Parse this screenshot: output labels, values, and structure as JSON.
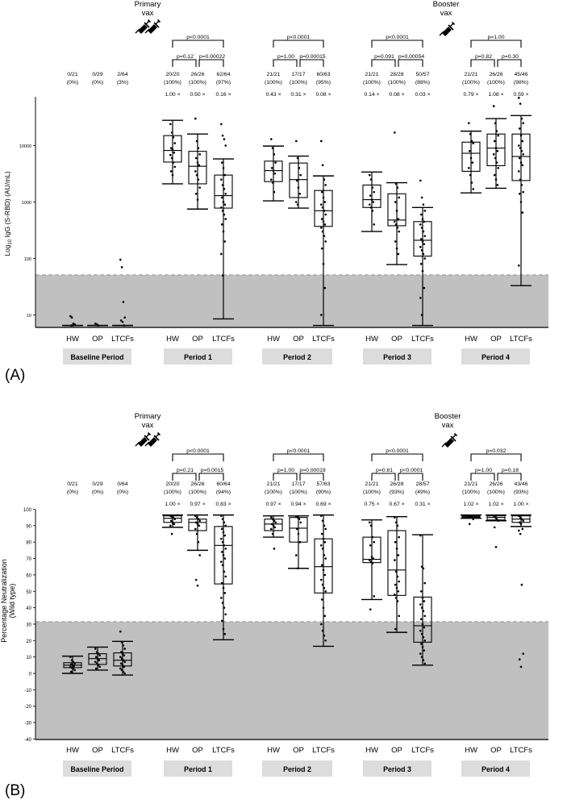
{
  "figure": {
    "panel_labels": [
      "(A)",
      "(B)"
    ],
    "groups": [
      "HW",
      "OP",
      "LTCFs"
    ],
    "periods": [
      "Baseline Period",
      "Period 1",
      "Period 2",
      "Period 3",
      "Period 4"
    ],
    "annotations": {
      "primary_vax": [
        "Primary",
        "vax"
      ],
      "booster_vax": [
        "Booster",
        "vax"
      ]
    },
    "colors": {
      "shade": "#c0c0c0",
      "dashed_line": "#a8a8a8",
      "period_box": "#dcdcdc",
      "ink": "#000000"
    }
  },
  "chart_data": [
    {
      "panel": "A",
      "type": "box",
      "ylabel": "Log10 IgG (S-RBD) (AU/mL)",
      "yscale": "log",
      "yticks": [
        10,
        100,
        1000,
        10000
      ],
      "ylim": [
        6,
        72000
      ],
      "threshold": 50,
      "categories": [
        "Baseline Period",
        "Period 1",
        "Period 2",
        "Period 3",
        "Period 4"
      ],
      "groups": [
        "HW",
        "OP",
        "LTCFs"
      ],
      "positives": [
        [
          "0/21",
          "0/29",
          "2/64"
        ],
        [
          "20/20",
          "26/26",
          "62/64"
        ],
        [
          "21/21",
          "17/17",
          "60/63"
        ],
        [
          "21/21",
          "28/28",
          "50/57"
        ],
        [
          "21/21",
          "26/26",
          "45/46"
        ]
      ],
      "percent": [
        [
          "(0%)",
          "(0%)",
          "(3%)"
        ],
        [
          "(100%)",
          "(100%)",
          "(97%)"
        ],
        [
          "(100%)",
          "(100%)",
          "(95%)"
        ],
        [
          "(100%)",
          "(100%)",
          "(88%)"
        ],
        [
          "(100%)",
          "(100%)",
          "(98%)"
        ]
      ],
      "fold": [
        [
          "",
          "",
          ""
        ],
        [
          "1.00 ×",
          "0.50 ×",
          "0.16 ×"
        ],
        [
          "0.43 ×",
          "0.31 ×",
          "0.08 ×"
        ],
        [
          "0.14 ×",
          "0.08 ×",
          "0.03 ×"
        ],
        [
          "0.79 ×",
          "1.08 ×",
          "0.59 ×"
        ]
      ],
      "pvalues": [
        null,
        {
          "overall": "p<0.0001",
          "hw_op": "p=0.12",
          "op_ltcf": "p=0.00022"
        },
        {
          "overall": "p<0.0001",
          "hw_op": "p=1.00",
          "op_ltcf": "p=0.00015"
        },
        {
          "overall": "p<0.0001",
          "hw_op": "p=0.091",
          "op_ltcf": "p=0.00054"
        },
        {
          "overall": "p=1.00",
          "hw_op": "p=0.82",
          "op_ltcf": "p=0.30"
        }
      ],
      "boxes": [
        [
          {
            "min": 6.5,
            "q1": 6.5,
            "median": 6.5,
            "q3": 6.5,
            "max": 6.5,
            "points": [
              9.5,
              9,
              7,
              6.8,
              6.5,
              6.5
            ]
          },
          {
            "min": 6.5,
            "q1": 6.5,
            "median": 6.5,
            "q3": 6.5,
            "max": 6.5,
            "points": [
              7,
              6.8,
              6.5
            ]
          },
          {
            "min": 6.5,
            "q1": 6.5,
            "median": 6.5,
            "q3": 6.5,
            "max": 6.5,
            "points": [
              95,
              70,
              17,
              9,
              8,
              7.5,
              6.5
            ]
          }
        ],
        [
          {
            "min": 2100,
            "q1": 5100,
            "median": 8200,
            "q3": 15000,
            "max": 28000,
            "points": [
              24000,
              17000,
              14000,
              11000,
              9000,
              8500,
              7500,
              6800,
              6000,
              5000,
              4200,
              3500,
              3000
            ]
          },
          {
            "min": 750,
            "q1": 2100,
            "median": 4300,
            "q3": 7900,
            "max": 16000,
            "points": [
              30000,
              12000,
              9000,
              7000,
              6000,
              5000,
              4500,
              3500,
              3000,
              2500,
              1800,
              1400,
              1100
            ]
          },
          {
            "min": 8.5,
            "q1": 780,
            "median": 1300,
            "q3": 3000,
            "max": 5800,
            "points": [
              24000,
              15000,
              13000,
              10000,
              5000,
              4000,
              3000,
              2500,
              2000,
              1700,
              1400,
              1200,
              1000,
              900,
              800,
              700,
              600,
              500,
              400,
              300,
              200,
              120,
              50
            ]
          }
        ],
        [
          {
            "min": 1050,
            "q1": 2300,
            "median": 3600,
            "q3": 5300,
            "max": 9800,
            "points": [
              13000,
              9000,
              7000,
              5000,
              4000,
              3600,
              3200,
              2500,
              2200,
              1500
            ]
          },
          {
            "min": 780,
            "q1": 1200,
            "median": 2500,
            "q3": 4900,
            "max": 6500,
            "points": [
              12000,
              6000,
              4000,
              3000,
              2400,
              1800,
              1400,
              1000,
              900
            ]
          },
          {
            "min": 6.5,
            "q1": 370,
            "median": 700,
            "q3": 1600,
            "max": 2900,
            "points": [
              12000,
              4500,
              2500,
              2000,
              1500,
              1200,
              1000,
              900,
              800,
              700,
              600,
              500,
              450,
              400,
              350,
              300,
              250,
              200,
              150,
              80,
              30,
              10
            ]
          }
        ],
        [
          {
            "min": 300,
            "q1": 800,
            "median": 1100,
            "q3": 2000,
            "max": 3400,
            "points": [
              3000,
              2500,
              1800,
              1500,
              1300,
              1100,
              1000,
              900,
              800,
              700,
              400
            ]
          },
          {
            "min": 78,
            "q1": 380,
            "median": 480,
            "q3": 1400,
            "max": 2200,
            "points": [
              17000,
              2100,
              1800,
              1200,
              1000,
              700,
              500,
              450,
              400,
              350,
              300,
              200,
              150,
              120
            ]
          },
          {
            "min": 6.5,
            "q1": 110,
            "median": 210,
            "q3": 450,
            "max": 800,
            "points": [
              2400,
              1200,
              900,
              700,
              600,
              500,
              450,
              400,
              350,
              300,
              250,
              220,
              200,
              180,
              160,
              140,
              120,
              100,
              80,
              60,
              30,
              20,
              10
            ]
          }
        ],
        [
          {
            "min": 1450,
            "q1": 3500,
            "median": 7300,
            "q3": 11500,
            "max": 18000,
            "points": [
              25000,
              16000,
              12000,
              11000,
              8000,
              6000,
              5000,
              4000,
              3000,
              2200,
              1700
            ]
          },
          {
            "min": 1750,
            "q1": 4400,
            "median": 9000,
            "q3": 16000,
            "max": 30000,
            "points": [
              50000,
              25000,
              18000,
              15000,
              12000,
              9000,
              8000,
              7000,
              6000,
              5000,
              4000,
              3000,
              2500,
              2000
            ]
          },
          {
            "min": 33,
            "q1": 2400,
            "median": 6400,
            "q3": 16000,
            "max": 34000,
            "points": [
              70000,
              55000,
              30000,
              25000,
              20000,
              15000,
              12000,
              10000,
              9000,
              8000,
              7000,
              6000,
              5000,
              4500,
              3500,
              2500,
              2000,
              1500,
              1400,
              1000,
              650,
              75
            ]
          }
        ]
      ]
    },
    {
      "panel": "B",
      "type": "box",
      "ylabel": "Percentage Neutralization (Wild type)",
      "yscale": "linear",
      "yticks": [
        100,
        90,
        80,
        70,
        60,
        50,
        40,
        30,
        20,
        10,
        0,
        -10,
        -20,
        -30,
        -40
      ],
      "ylim": [
        -40,
        100
      ],
      "threshold": 30,
      "categories": [
        "Baseline Period",
        "Period 1",
        "Period 2",
        "Period 3",
        "Period 4"
      ],
      "groups": [
        "HW",
        "OP",
        "LTCFs"
      ],
      "positives": [
        [
          "0/21",
          "0/29",
          "0/64"
        ],
        [
          "20/20",
          "26/26",
          "60/64"
        ],
        [
          "21/21",
          "17/17",
          "57/63"
        ],
        [
          "21/21",
          "26/28",
          "28/57"
        ],
        [
          "21/21",
          "26/26",
          "43/46"
        ]
      ],
      "percent": [
        [
          "(0%)",
          "(0%)",
          "(0%)"
        ],
        [
          "(100%)",
          "(100%)",
          "(94%)"
        ],
        [
          "(100%)",
          "(100%)",
          "(90%)"
        ],
        [
          "(100%)",
          "(93%)",
          "(49%)"
        ],
        [
          "(100%)",
          "(100%)",
          "(93%)"
        ]
      ],
      "fold": [
        [
          "",
          "",
          ""
        ],
        [
          "1.00 ×",
          "0.97 ×",
          "0.83 ×"
        ],
        [
          "0.97 ×",
          "0.94 ×",
          "0.69 ×"
        ],
        [
          "0.75 ×",
          "0.67 ×",
          "0.31 ×"
        ],
        [
          "1.02 ×",
          "1.02 ×",
          "1.00 ×"
        ]
      ],
      "pvalues": [
        null,
        {
          "overall": "p<0.0001",
          "hw_op": "p=0.21",
          "op_ltcf": "p=0.0015"
        },
        {
          "overall": "p<0.0001",
          "hw_op": "p=1.00",
          "op_ltcf": "p=0.00019"
        },
        {
          "overall": "p<0.0001",
          "hw_op": "p=0.81",
          "op_ltcf": "p<0.0001"
        },
        {
          "overall": "p=0.032",
          "hw_op": "p=1.00",
          "op_ltcf": "p=0.18"
        }
      ],
      "boxes": [
        [
          {
            "min": 0,
            "q1": 3.5,
            "median": 5,
            "q3": 6.5,
            "max": 10.5,
            "points": [
              10,
              8,
              7,
              6,
              5.5,
              5,
              4.5,
              4,
              3.5,
              3,
              2,
              1
            ]
          },
          {
            "min": 2,
            "q1": 5.5,
            "median": 9,
            "q3": 12,
            "max": 16,
            "points": [
              15,
              13,
              12,
              11,
              10,
              9,
              8,
              7,
              6,
              5,
              4,
              3
            ]
          },
          {
            "min": -1,
            "q1": 4.5,
            "median": 8,
            "q3": 12.5,
            "max": 19.5,
            "points": [
              25.5,
              19,
              17,
              15,
              13,
              12,
              11,
              10,
              9,
              8,
              7,
              6,
              5,
              4,
              3,
              2,
              1,
              0
            ]
          }
        ],
        [
          {
            "min": 89,
            "q1": 92,
            "median": 94.5,
            "q3": 96,
            "max": 96.5,
            "points": [
              96,
              95.5,
              95,
              94,
              93,
              92,
              91,
              90,
              85
            ]
          },
          {
            "min": 75,
            "q1": 87,
            "median": 92,
            "q3": 94,
            "max": 96.5,
            "points": [
              96,
              95,
              94,
              93,
              92,
              91,
              90,
              88,
              85,
              80,
              72,
              57,
              53.5
            ]
          },
          {
            "min": 20.5,
            "q1": 54.5,
            "median": 78,
            "q3": 89.5,
            "max": 96.5,
            "points": [
              96,
              94,
              92,
              90,
              88,
              86,
              84,
              82,
              80,
              78,
              76,
              74,
              72,
              70,
              68,
              66,
              62,
              59,
              55,
              52,
              49,
              46,
              43,
              40,
              36,
              32,
              27,
              24
            ]
          }
        ],
        [
          {
            "min": 83,
            "q1": 87,
            "median": 91,
            "q3": 94,
            "max": 96,
            "points": [
              95,
              94,
              93,
              92,
              91,
              90,
              89,
              88,
              85,
              76
            ]
          },
          {
            "min": 64,
            "q1": 80,
            "median": 88.5,
            "q3": 95,
            "max": 96,
            "points": [
              95.5,
              95,
              94,
              92,
              88,
              85,
              80,
              72,
              64
            ]
          },
          {
            "min": 16.5,
            "q1": 49,
            "median": 65,
            "q3": 82,
            "max": 96.5,
            "points": [
              96,
              93,
              90,
              88,
              85,
              82,
              80,
              78,
              76,
              72,
              70,
              66,
              63,
              60,
              57,
              54,
              52,
              50,
              45,
              40,
              35,
              30,
              26,
              23,
              20
            ]
          }
        ],
        [
          {
            "min": 45,
            "q1": 67.5,
            "median": 69.5,
            "q3": 83,
            "max": 93.5,
            "points": [
              92,
              90,
              83,
              80,
              78,
              71,
              70,
              69,
              68,
              67,
              47,
              39
            ]
          },
          {
            "min": 25,
            "q1": 47.5,
            "median": 63,
            "q3": 87,
            "max": 95.5,
            "points": [
              95,
              92,
              90,
              83,
              80,
              76,
              72,
              69,
              62,
              59,
              56,
              54,
              52,
              50,
              48,
              46,
              44,
              35,
              27
            ]
          },
          {
            "min": 5,
            "q1": 19,
            "median": 29,
            "q3": 46.5,
            "max": 84.5,
            "points": [
              84,
              65,
              64,
              55,
              50,
              46,
              44,
              42,
              40,
              38,
              35,
              33,
              30,
              28,
              26,
              24,
              22,
              20,
              18,
              16,
              14,
              12,
              10,
              8,
              6
            ]
          }
        ],
        [
          {
            "min": 94.5,
            "q1": 95,
            "median": 95.5,
            "q3": 96,
            "max": 96.5,
            "points": [
              96,
              95.5,
              95,
              94,
              91
            ]
          },
          {
            "min": 93,
            "q1": 93.5,
            "median": 95,
            "q3": 96,
            "max": 96.5,
            "points": [
              96,
              95,
              94,
              93,
              89,
              77
            ]
          },
          {
            "min": 89.5,
            "q1": 92,
            "median": 94,
            "q3": 96,
            "max": 96.5,
            "points": [
              96,
              95,
              94,
              93,
              92,
              91,
              88,
              87,
              85,
              54,
              12,
              8.5,
              4
            ]
          }
        ]
      ]
    }
  ]
}
